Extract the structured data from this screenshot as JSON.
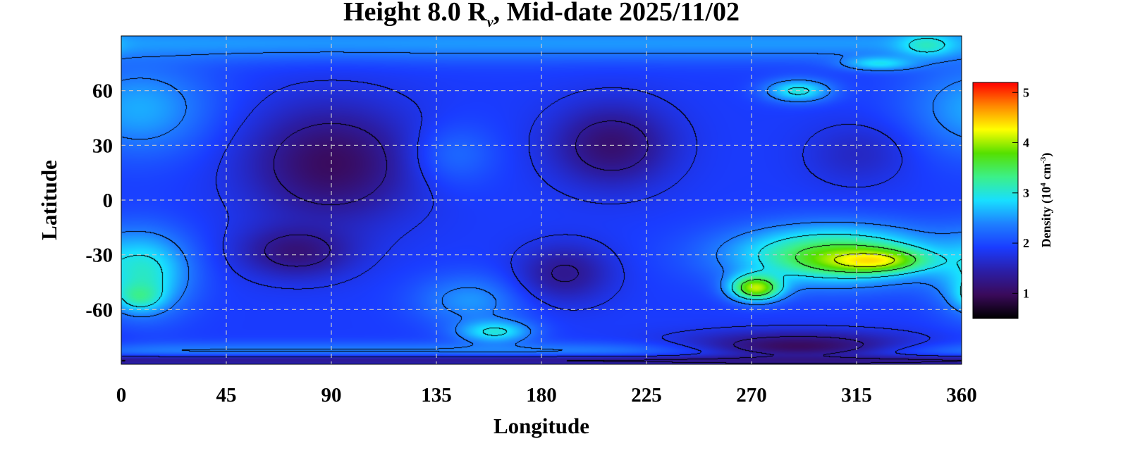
{
  "chart_data": {
    "type": "heatmap",
    "title_prefix": "Height 8.0 R",
    "title_subscript": "v",
    "title_suffix": ", Mid-date 2025/11/02",
    "xlabel": "Longitude",
    "ylabel": "Latitude",
    "xlim": [
      0,
      360
    ],
    "ylim": [
      -90,
      90
    ],
    "xticks": [
      0,
      45,
      90,
      135,
      180,
      225,
      270,
      315,
      360
    ],
    "yticks": [
      60,
      30,
      0,
      -30,
      -60
    ],
    "ytick_labels": [
      "60",
      "30",
      "0",
      "-30",
      "-60"
    ],
    "grid": true,
    "colorbar": {
      "label_prefix": "Density (10",
      "label_exp1": "4",
      "label_mid": " cm",
      "label_exp2": "-3",
      "label_suffix": ")",
      "range": [
        0.5,
        5.2
      ],
      "ticks": [
        1,
        2,
        3,
        4,
        5
      ],
      "colormap": [
        "#000000",
        "#3a0a5a",
        "#2b1ea6",
        "#1a3cff",
        "#1e7fff",
        "#18dfff",
        "#3cf088",
        "#55e000",
        "#ffff00",
        "#ff8800",
        "#ff0000"
      ]
    },
    "density_features": [
      {
        "kind": "background",
        "value": 1.9
      },
      {
        "kind": "band",
        "lon_from": 0,
        "lon_to": 360,
        "lat_center": 86,
        "half_width": 10,
        "value": 2.5
      },
      {
        "kind": "band",
        "lon_from": 0,
        "lon_to": 360,
        "lat_center": -83,
        "half_width": 5,
        "value": 2.4
      },
      {
        "kind": "band",
        "lon_from": 0,
        "lon_to": 360,
        "lat_center": -88,
        "half_width": 3,
        "value": 1.35
      },
      {
        "kind": "blob",
        "lon": 8,
        "lat": 50,
        "rx": 40,
        "ry": 32,
        "value": 2.6
      },
      {
        "kind": "blob",
        "lon": 10,
        "lat": -40,
        "rx": 25,
        "ry": 28,
        "value": 3.0
      },
      {
        "kind": "blob",
        "lon": 8,
        "lat": -52,
        "rx": 12,
        "ry": 10,
        "value": 3.3
      },
      {
        "kind": "blob",
        "lon": 90,
        "lat": 20,
        "rx": 45,
        "ry": 40,
        "value": 1.0
      },
      {
        "kind": "blob",
        "lon": 75,
        "lat": -28,
        "rx": 30,
        "ry": 18,
        "value": 1.15
      },
      {
        "kind": "blob",
        "lon": 145,
        "lat": 25,
        "rx": 22,
        "ry": 22,
        "value": 2.2
      },
      {
        "kind": "blob",
        "lon": 150,
        "lat": -55,
        "rx": 30,
        "ry": 18,
        "value": 2.5
      },
      {
        "kind": "blob",
        "lon": 160,
        "lat": -72,
        "rx": 20,
        "ry": 8,
        "value": 3.0
      },
      {
        "kind": "blob",
        "lon": 210,
        "lat": 30,
        "rx": 32,
        "ry": 28,
        "value": 1.1
      },
      {
        "kind": "blob",
        "lon": 190,
        "lat": -40,
        "rx": 25,
        "ry": 20,
        "value": 1.3
      },
      {
        "kind": "blob",
        "lon": 305,
        "lat": -30,
        "rx": 55,
        "ry": 20,
        "value": 3.6
      },
      {
        "kind": "blob",
        "lon": 320,
        "lat": -33,
        "rx": 28,
        "ry": 8,
        "value": 4.4
      },
      {
        "kind": "blob",
        "lon": 272,
        "lat": -48,
        "rx": 14,
        "ry": 9,
        "value": 4.1
      },
      {
        "kind": "blob",
        "lon": 315,
        "lat": 25,
        "rx": 28,
        "ry": 22,
        "value": 1.6
      },
      {
        "kind": "blob",
        "lon": 290,
        "lat": 60,
        "rx": 18,
        "ry": 8,
        "value": 3.0
      },
      {
        "kind": "blob",
        "lon": 345,
        "lat": 85,
        "rx": 15,
        "ry": 8,
        "value": 3.1
      },
      {
        "kind": "blob",
        "lon": 325,
        "lat": 75,
        "rx": 20,
        "ry": 5,
        "value": 2.9
      },
      {
        "kind": "blob",
        "lon": 290,
        "lat": -80,
        "rx": 60,
        "ry": 10,
        "value": 1.0
      }
    ]
  }
}
